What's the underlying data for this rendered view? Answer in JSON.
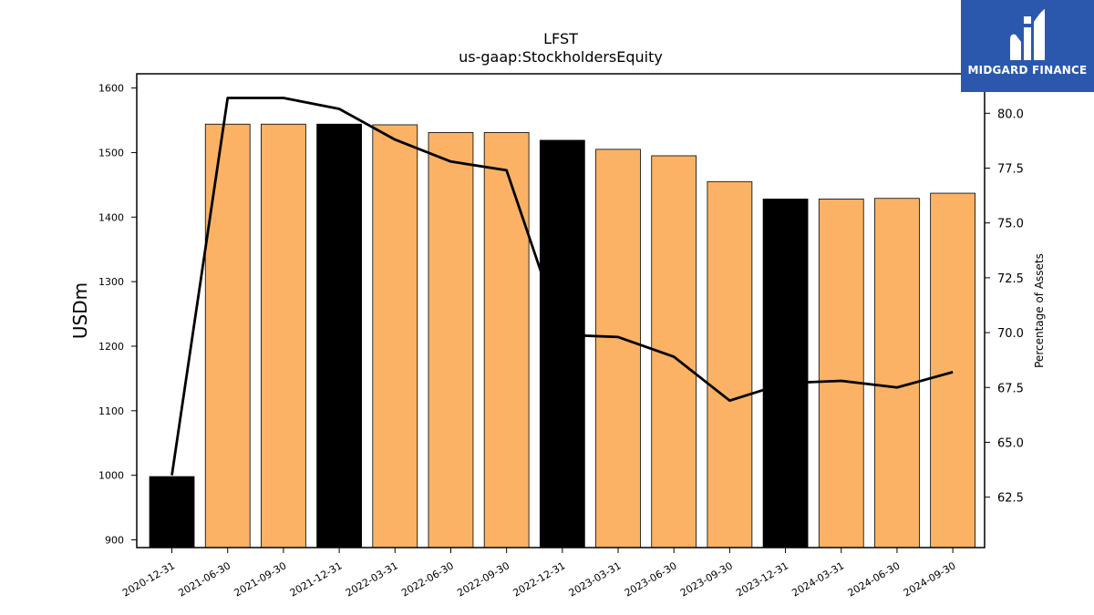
{
  "logo": {
    "text": "MIDGARD FINANCE"
  },
  "chart_data": {
    "type": "bar+line",
    "title": "LFST",
    "subtitle": "us-gaap:StockholdersEquity",
    "ylabel_left": "USDm",
    "ylabel_right": "Percentage of Assets",
    "ylim_left": [
      888,
      1622
    ],
    "ylim_right": [
      60.2,
      81.8
    ],
    "yticks_left": [
      900,
      1000,
      1100,
      1200,
      1300,
      1400,
      1500,
      1600
    ],
    "yticks_right": [
      "62.5",
      "65.0",
      "67.5",
      "70.0",
      "72.5",
      "75.0",
      "77.5",
      "80.0"
    ],
    "categories": [
      "2020-12-31",
      "2021-06-30",
      "2021-09-30",
      "2021-12-31",
      "2022-03-31",
      "2022-06-30",
      "2022-09-30",
      "2022-12-31",
      "2023-03-31",
      "2023-06-30",
      "2023-09-30",
      "2023-12-31",
      "2024-03-31",
      "2024-06-30",
      "2024-09-30"
    ],
    "bars": {
      "values": [
        998,
        1544,
        1544,
        1544,
        1543,
        1531,
        1531,
        1519,
        1505,
        1495,
        1455,
        1428,
        1428,
        1429,
        1437
      ],
      "fiscal_year_end": [
        true,
        false,
        false,
        true,
        false,
        false,
        false,
        true,
        false,
        false,
        false,
        true,
        false,
        false,
        false
      ]
    },
    "line": {
      "values": [
        63.5,
        80.7,
        80.7,
        80.2,
        78.8,
        77.8,
        77.4,
        69.9,
        69.8,
        68.9,
        66.9,
        67.7,
        67.8,
        67.5,
        68.2
      ]
    },
    "colors": {
      "bar": "#fbb264",
      "bar_highlight": "#000000",
      "line": "#000000"
    }
  }
}
